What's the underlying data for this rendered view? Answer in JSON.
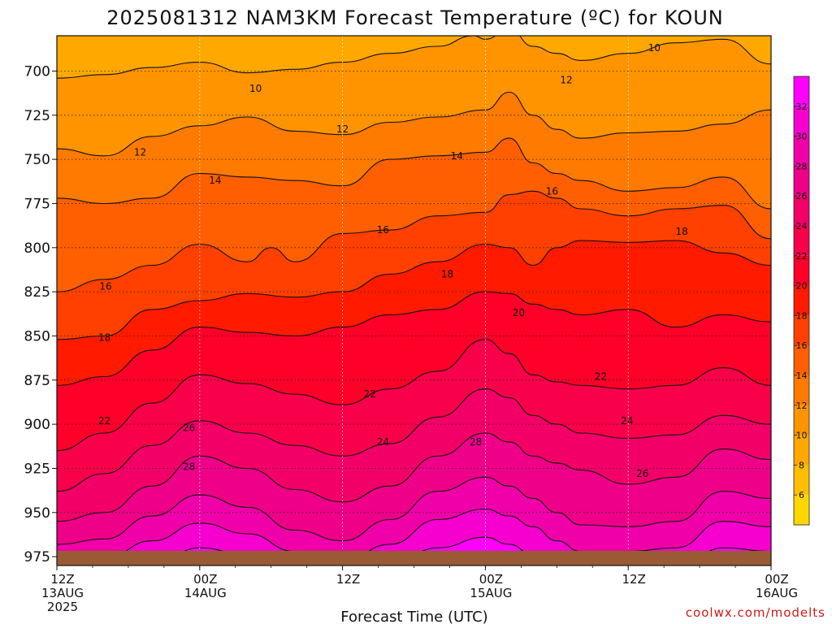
{
  "chart_data": {
    "type": "heatmap",
    "title": "2025081312 NAM3KM Forecast Temperature (ºC) for KOUN",
    "xlabel": "Forecast Time (UTC)",
    "ylabel": "",
    "credit": "coolwx.com/modelts",
    "x_ticks": [
      {
        "hour": 0,
        "l1": "12Z",
        "l2": "13AUG",
        "l3": "2025"
      },
      {
        "hour": 12,
        "l1": "00Z",
        "l2": "14AUG",
        "l3": ""
      },
      {
        "hour": 24,
        "l1": "12Z",
        "l2": "",
        "l3": ""
      },
      {
        "hour": 36,
        "l1": "00Z",
        "l2": "15AUG",
        "l3": ""
      },
      {
        "hour": 48,
        "l1": "12Z",
        "l2": "",
        "l3": ""
      },
      {
        "hour": 60,
        "l1": "00Z",
        "l2": "16AUG",
        "l3": ""
      }
    ],
    "x_range_hours": [
      0,
      60
    ],
    "y_ticks": [
      700,
      725,
      750,
      775,
      800,
      825,
      850,
      875,
      900,
      925,
      950,
      975
    ],
    "y_range_hPa": [
      680,
      980
    ],
    "y_inverted": true,
    "grid": "dotted",
    "colorbar": {
      "position": "right",
      "ticks": [
        6,
        8,
        10,
        12,
        14,
        16,
        18,
        20,
        22,
        24,
        26,
        28,
        30,
        32
      ],
      "bins": [
        {
          "from": 4,
          "to": 6,
          "color": "#ffd700"
        },
        {
          "from": 6,
          "to": 8,
          "color": "#ffbf00"
        },
        {
          "from": 8,
          "to": 10,
          "color": "#ffa800"
        },
        {
          "from": 10,
          "to": 12,
          "color": "#ff9400"
        },
        {
          "from": 12,
          "to": 14,
          "color": "#ff7a00"
        },
        {
          "from": 14,
          "to": 16,
          "color": "#ff5f00"
        },
        {
          "from": 16,
          "to": 18,
          "color": "#ff4000"
        },
        {
          "from": 18,
          "to": 20,
          "color": "#ff1a00"
        },
        {
          "from": 20,
          "to": 22,
          "color": "#ff0028"
        },
        {
          "from": 22,
          "to": 24,
          "color": "#f8004a"
        },
        {
          "from": 24,
          "to": 26,
          "color": "#f20068"
        },
        {
          "from": 26,
          "to": 28,
          "color": "#ee0088"
        },
        {
          "from": 28,
          "to": 30,
          "color": "#f000a8"
        },
        {
          "from": 30,
          "to": 32,
          "color": "#f600d0"
        },
        {
          "from": 32,
          "to": 34,
          "color": "#ff00ff"
        }
      ]
    },
    "contours": [
      {
        "level": 10,
        "p": [
          [
            0,
            704
          ],
          [
            4,
            702
          ],
          [
            8,
            698
          ],
          [
            12,
            695
          ],
          [
            16,
            701
          ],
          [
            20,
            699
          ],
          [
            24,
            695
          ],
          [
            28,
            690
          ],
          [
            32,
            686
          ],
          [
            35,
            680
          ],
          [
            36,
            682
          ],
          [
            38,
            676
          ],
          [
            40,
            686
          ],
          [
            42,
            690
          ],
          [
            44,
            694
          ],
          [
            48,
            690
          ],
          [
            52,
            684
          ],
          [
            56,
            682
          ],
          [
            60,
            696
          ]
        ]
      },
      {
        "level": 12,
        "p": [
          [
            0,
            744
          ],
          [
            4,
            748
          ],
          [
            8,
            737
          ],
          [
            12,
            731
          ],
          [
            16,
            726
          ],
          [
            20,
            734
          ],
          [
            24,
            736
          ],
          [
            28,
            729
          ],
          [
            32,
            726
          ],
          [
            36,
            722
          ],
          [
            38,
            712
          ],
          [
            40,
            725
          ],
          [
            42,
            733
          ],
          [
            44,
            738
          ],
          [
            48,
            735
          ],
          [
            52,
            734
          ],
          [
            56,
            730
          ],
          [
            60,
            722
          ]
        ]
      },
      {
        "level": 14,
        "p": [
          [
            0,
            772
          ],
          [
            4,
            775
          ],
          [
            8,
            772
          ],
          [
            12,
            758
          ],
          [
            16,
            760
          ],
          [
            20,
            762
          ],
          [
            24,
            765
          ],
          [
            28,
            750
          ],
          [
            32,
            748
          ],
          [
            36,
            746
          ],
          [
            38,
            738
          ],
          [
            40,
            752
          ],
          [
            42,
            758
          ],
          [
            44,
            762
          ],
          [
            48,
            768
          ],
          [
            52,
            766
          ],
          [
            56,
            760
          ],
          [
            60,
            778
          ]
        ]
      },
      {
        "level": 16,
        "p": [
          [
            0,
            825
          ],
          [
            4,
            818
          ],
          [
            8,
            810
          ],
          [
            12,
            798
          ],
          [
            16,
            808
          ],
          [
            18,
            800
          ],
          [
            20,
            808
          ],
          [
            24,
            792
          ],
          [
            28,
            790
          ],
          [
            32,
            782
          ],
          [
            36,
            780
          ],
          [
            38,
            770
          ],
          [
            40,
            768
          ],
          [
            42,
            772
          ],
          [
            44,
            778
          ],
          [
            48,
            782
          ],
          [
            52,
            778
          ],
          [
            56,
            776
          ],
          [
            60,
            795
          ]
        ]
      },
      {
        "level": 18,
        "p": [
          [
            0,
            852
          ],
          [
            4,
            850
          ],
          [
            8,
            835
          ],
          [
            12,
            830
          ],
          [
            16,
            826
          ],
          [
            20,
            828
          ],
          [
            24,
            825
          ],
          [
            28,
            815
          ],
          [
            32,
            808
          ],
          [
            36,
            798
          ],
          [
            38,
            800
          ],
          [
            40,
            810
          ],
          [
            42,
            800
          ],
          [
            44,
            796
          ],
          [
            48,
            797
          ],
          [
            52,
            796
          ],
          [
            56,
            803
          ],
          [
            60,
            810
          ]
        ]
      },
      {
        "level": 20,
        "p": [
          [
            0,
            878
          ],
          [
            4,
            873
          ],
          [
            8,
            858
          ],
          [
            12,
            845
          ],
          [
            16,
            848
          ],
          [
            20,
            850
          ],
          [
            24,
            845
          ],
          [
            28,
            838
          ],
          [
            32,
            835
          ],
          [
            36,
            825
          ],
          [
            38,
            826
          ],
          [
            40,
            832
          ],
          [
            42,
            835
          ],
          [
            44,
            838
          ],
          [
            48,
            835
          ],
          [
            52,
            845
          ],
          [
            56,
            838
          ],
          [
            60,
            842
          ]
        ]
      },
      {
        "level": 22,
        "p": [
          [
            0,
            915
          ],
          [
            4,
            905
          ],
          [
            8,
            888
          ],
          [
            12,
            872
          ],
          [
            16,
            877
          ],
          [
            20,
            883
          ],
          [
            24,
            889
          ],
          [
            28,
            880
          ],
          [
            32,
            870
          ],
          [
            36,
            852
          ],
          [
            38,
            860
          ],
          [
            40,
            872
          ],
          [
            42,
            876
          ],
          [
            44,
            878
          ],
          [
            48,
            880
          ],
          [
            52,
            878
          ],
          [
            56,
            868
          ],
          [
            60,
            878
          ]
        ]
      },
      {
        "level": 24,
        "p": [
          [
            0,
            938
          ],
          [
            4,
            928
          ],
          [
            8,
            912
          ],
          [
            12,
            898
          ],
          [
            16,
            905
          ],
          [
            20,
            912
          ],
          [
            24,
            918
          ],
          [
            28,
            911
          ],
          [
            32,
            896
          ],
          [
            36,
            880
          ],
          [
            38,
            885
          ],
          [
            40,
            895
          ],
          [
            42,
            900
          ],
          [
            44,
            905
          ],
          [
            48,
            908
          ],
          [
            52,
            906
          ],
          [
            56,
            895
          ],
          [
            60,
            900
          ]
        ]
      },
      {
        "level": 26,
        "p": [
          [
            0,
            955
          ],
          [
            4,
            950
          ],
          [
            8,
            935
          ],
          [
            12,
            918
          ],
          [
            16,
            925
          ],
          [
            20,
            937
          ],
          [
            24,
            944
          ],
          [
            28,
            935
          ],
          [
            32,
            918
          ],
          [
            36,
            905
          ],
          [
            38,
            910
          ],
          [
            40,
            918
          ],
          [
            42,
            922
          ],
          [
            44,
            926
          ],
          [
            48,
            934
          ],
          [
            52,
            930
          ],
          [
            56,
            914
          ],
          [
            60,
            920
          ]
        ]
      },
      {
        "level": 28,
        "p": [
          [
            0,
            968
          ],
          [
            4,
            965
          ],
          [
            8,
            952
          ],
          [
            12,
            940
          ],
          [
            16,
            947
          ],
          [
            20,
            960
          ],
          [
            24,
            966
          ],
          [
            28,
            954
          ],
          [
            32,
            938
          ],
          [
            36,
            930
          ],
          [
            38,
            935
          ],
          [
            40,
            942
          ],
          [
            42,
            950
          ],
          [
            44,
            957
          ],
          [
            48,
            958
          ],
          [
            52,
            955
          ],
          [
            56,
            938
          ],
          [
            60,
            942
          ]
        ]
      },
      {
        "level": 30,
        "p": [
          [
            0,
            978
          ],
          [
            4,
            976
          ],
          [
            8,
            966
          ],
          [
            12,
            956
          ],
          [
            16,
            962
          ],
          [
            20,
            972
          ],
          [
            24,
            978
          ],
          [
            28,
            968
          ],
          [
            32,
            954
          ],
          [
            36,
            948
          ],
          [
            38,
            952
          ],
          [
            40,
            958
          ],
          [
            42,
            966
          ],
          [
            44,
            972
          ],
          [
            48,
            972
          ],
          [
            52,
            970
          ],
          [
            56,
            955
          ],
          [
            60,
            958
          ]
        ]
      },
      {
        "level": 32,
        "p": [
          [
            0,
            982
          ],
          [
            4,
            982
          ],
          [
            8,
            980
          ],
          [
            12,
            970
          ],
          [
            16,
            974
          ],
          [
            20,
            982
          ],
          [
            24,
            982
          ],
          [
            28,
            980
          ],
          [
            32,
            970
          ],
          [
            36,
            964
          ],
          [
            38,
            968
          ],
          [
            40,
            974
          ],
          [
            42,
            980
          ],
          [
            44,
            982
          ],
          [
            48,
            982
          ],
          [
            52,
            982
          ],
          [
            56,
            970
          ],
          [
            60,
            972
          ]
        ]
      }
    ],
    "contour_labels": [
      {
        "text": "10",
        "hour": 16.7,
        "hPa": 710
      },
      {
        "text": "10",
        "hour": 50.2,
        "hPa": 687
      },
      {
        "text": "12",
        "hour": 42.8,
        "hPa": 705
      },
      {
        "text": "12",
        "hour": 7.0,
        "hPa": 746
      },
      {
        "text": "12",
        "hour": 24.0,
        "hPa": 733
      },
      {
        "text": "14",
        "hour": 13.3,
        "hPa": 762
      },
      {
        "text": "14",
        "hour": 33.6,
        "hPa": 748
      },
      {
        "text": "16",
        "hour": 27.4,
        "hPa": 790
      },
      {
        "text": "16",
        "hour": 41.6,
        "hPa": 768
      },
      {
        "text": "16",
        "hour": 4.1,
        "hPa": 822
      },
      {
        "text": "18",
        "hour": 52.5,
        "hPa": 791
      },
      {
        "text": "18",
        "hour": 32.8,
        "hPa": 815
      },
      {
        "text": "18",
        "hour": 4.0,
        "hPa": 851
      },
      {
        "text": "20",
        "hour": 38.8,
        "hPa": 837
      },
      {
        "text": "22",
        "hour": 45.7,
        "hPa": 873
      },
      {
        "text": "22",
        "hour": 26.3,
        "hPa": 883
      },
      {
        "text": "22",
        "hour": 4.0,
        "hPa": 898
      },
      {
        "text": "24",
        "hour": 47.9,
        "hPa": 898
      },
      {
        "text": "24",
        "hour": 27.4,
        "hPa": 910
      },
      {
        "text": "26",
        "hour": 11.1,
        "hPa": 902
      },
      {
        "text": "26",
        "hour": 49.2,
        "hPa": 928
      },
      {
        "text": "28",
        "hour": 11.1,
        "hPa": 924
      },
      {
        "text": "28",
        "hour": 35.2,
        "hPa": 910
      }
    ]
  }
}
